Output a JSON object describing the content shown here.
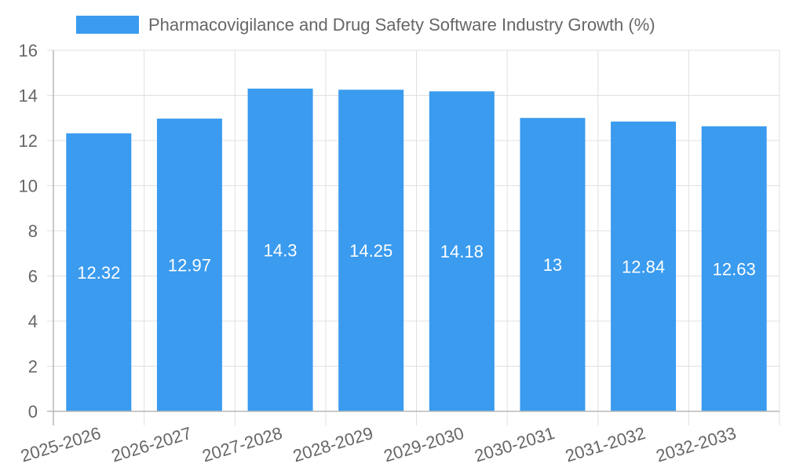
{
  "chart_data": {
    "type": "bar",
    "categories": [
      "2025-2026",
      "2026-2027",
      "2027-2028",
      "2028-2029",
      "2029-2030",
      "2030-2031",
      "2031-2032",
      "2032-2033"
    ],
    "series": [
      {
        "name": "Pharmacovigilance and Drug Safety Software Industry Growth (%)",
        "values": [
          12.32,
          12.97,
          14.3,
          14.25,
          14.18,
          13,
          12.84,
          12.63
        ],
        "color": "#3a9bef"
      }
    ],
    "ylim": [
      0,
      16
    ],
    "yticks": [
      0,
      2,
      4,
      6,
      8,
      10,
      12,
      14,
      16
    ],
    "grid": true,
    "legend_position": "top"
  }
}
